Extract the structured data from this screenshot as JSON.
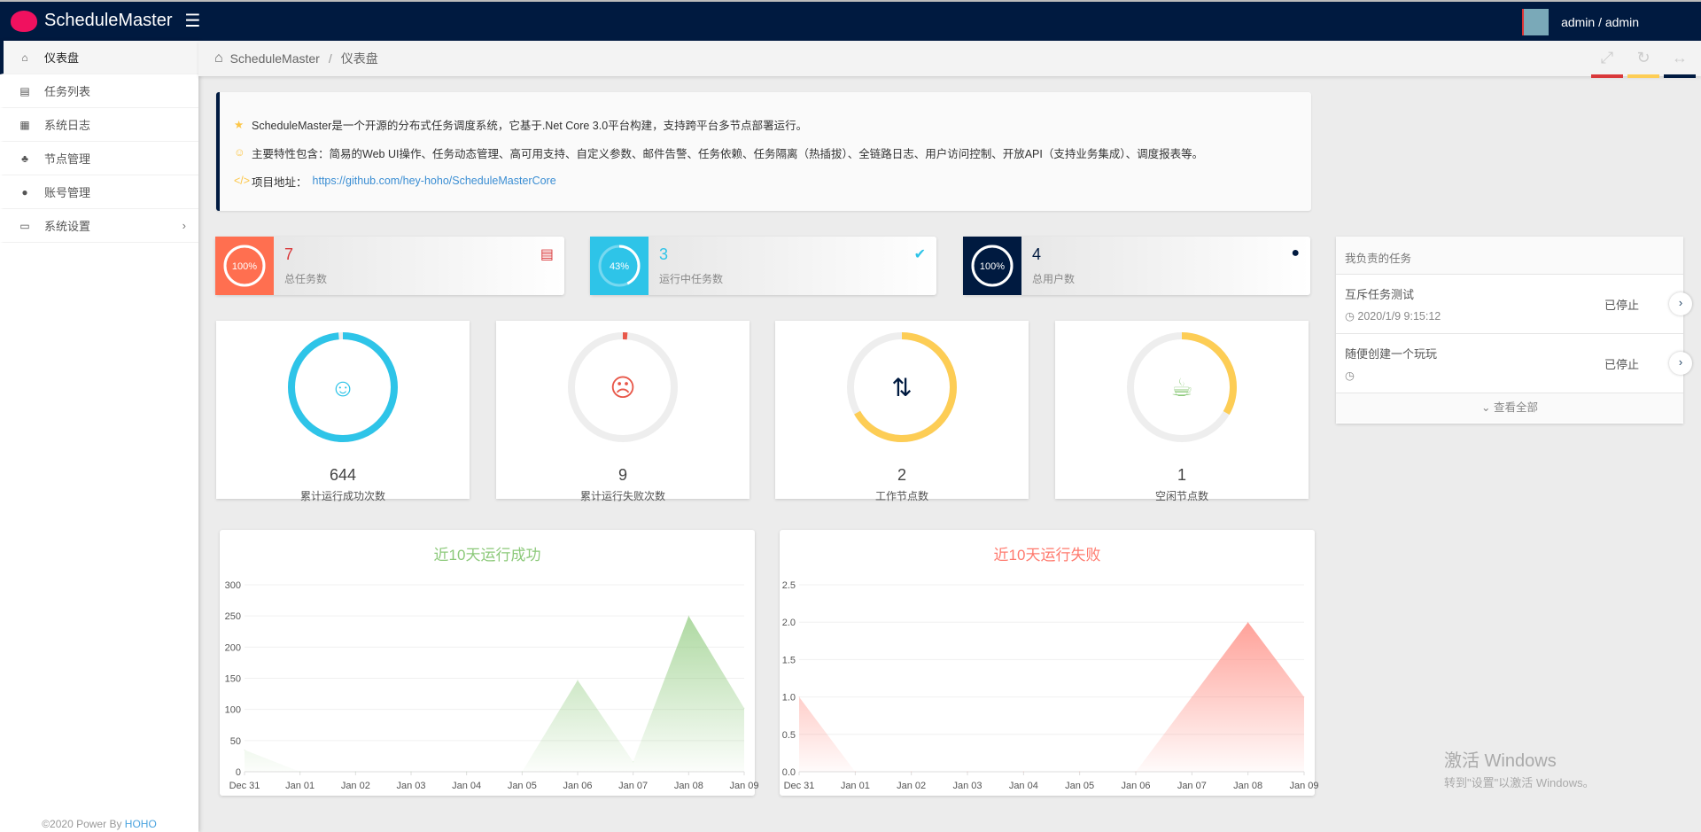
{
  "app": {
    "title": "ScheduleMaster",
    "user": "admin / admin"
  },
  "sidebar": {
    "items": [
      {
        "label": "仪表盘",
        "icon": "home-icon"
      },
      {
        "label": "任务列表",
        "icon": "server-icon"
      },
      {
        "label": "系统日志",
        "icon": "grid-icon"
      },
      {
        "label": "节点管理",
        "icon": "sitemap-icon"
      },
      {
        "label": "账号管理",
        "icon": "user-icon"
      },
      {
        "label": "系统设置",
        "icon": "desktop-icon"
      }
    ],
    "footer": "©2020 Power By ",
    "footer_link": "HOHO"
  },
  "breadcrumb": {
    "root": "ScheduleMaster",
    "sep": "/",
    "current": "仪表盘"
  },
  "notice": {
    "line1": "ScheduleMaster是一个开源的分布式任务调度系统，它基于.Net Core 3.0平台构建，支持跨平台多节点部署运行。",
    "line2": "主要特性包含：简易的Web UI操作、任务动态管理、高可用支持、自定义参数、邮件告警、任务依赖、任务隔离（热插拔）、全链路日志、用户访问控制、开放API（支持业务集成）、调度报表等。",
    "line3_label": "项目地址：",
    "line3_link": "https://github.com/hey-hoho/ScheduleMasterCore"
  },
  "stats": [
    {
      "pct": "100%",
      "pct_value": 100,
      "value": "7",
      "label": "总任务数",
      "color": "#ff6f50",
      "num_color": "#d9383a"
    },
    {
      "pct": "43%",
      "pct_value": 43,
      "value": "3",
      "label": "运行中任务数",
      "color": "#2ec4e8",
      "num_color": "#2ec4e8"
    },
    {
      "pct": "100%",
      "pct_value": 100,
      "value": "4",
      "label": "总用户数",
      "color": "#001a40",
      "num_color": "#001a40"
    }
  ],
  "rings": [
    {
      "value": "644",
      "label": "累计运行成功次数",
      "fraction": 0.986,
      "color": "#2ec4e8",
      "icon": "smile-icon",
      "glyph": "☺"
    },
    {
      "value": "9",
      "label": "累计运行失败次数",
      "fraction": 0.014,
      "color": "#e8584a",
      "icon": "frown-icon",
      "glyph": "☹"
    },
    {
      "value": "2",
      "label": "工作节点数",
      "fraction": 0.667,
      "color": "#fdcd55",
      "icon": "retweet-icon",
      "glyph": "⇅"
    },
    {
      "value": "1",
      "label": "空闲节点数",
      "fraction": 0.333,
      "color": "#fdcd55",
      "icon": "coffee-icon",
      "glyph": "☕"
    }
  ],
  "panel": {
    "title": "我负责的任务",
    "tasks": [
      {
        "name": "互斥任务测试",
        "time": "2020/1/9 9:15:12",
        "status": "已停止"
      },
      {
        "name": "随便创建一个玩玩",
        "time": "",
        "status": "已停止"
      }
    ],
    "more": "查看全部"
  },
  "watermark": {
    "title": "激活 Windows",
    "sub": "转到\"设置\"以激活 Windows。"
  },
  "chart_data": [
    {
      "type": "area",
      "title": "近10天运行成功",
      "categories": [
        "Dec 31",
        "Jan 01",
        "Jan 02",
        "Jan 03",
        "Jan 04",
        "Jan 05",
        "Jan 06",
        "Jan 07",
        "Jan 08",
        "Jan 09"
      ],
      "values": [
        35,
        0,
        0,
        0,
        0,
        0,
        147,
        16,
        250,
        102
      ],
      "ylim": [
        0,
        300
      ],
      "yticks": [
        "0",
        "50",
        "100",
        "150",
        "200",
        "250",
        "300"
      ],
      "color": "#8cc97a"
    },
    {
      "type": "area",
      "title": "近10天运行失败",
      "categories": [
        "Dec 31",
        "Jan 01",
        "Jan 02",
        "Jan 03",
        "Jan 04",
        "Jan 05",
        "Jan 06",
        "Jan 07",
        "Jan 08",
        "Jan 09"
      ],
      "values": [
        1,
        0,
        0,
        0,
        0,
        0,
        0,
        1,
        2,
        1
      ],
      "ylim": [
        0,
        2.5
      ],
      "yticks": [
        "0.0",
        "0.5",
        "1.0",
        "1.5",
        "2.0",
        "2.5"
      ],
      "color": "#ff7a6e"
    }
  ]
}
